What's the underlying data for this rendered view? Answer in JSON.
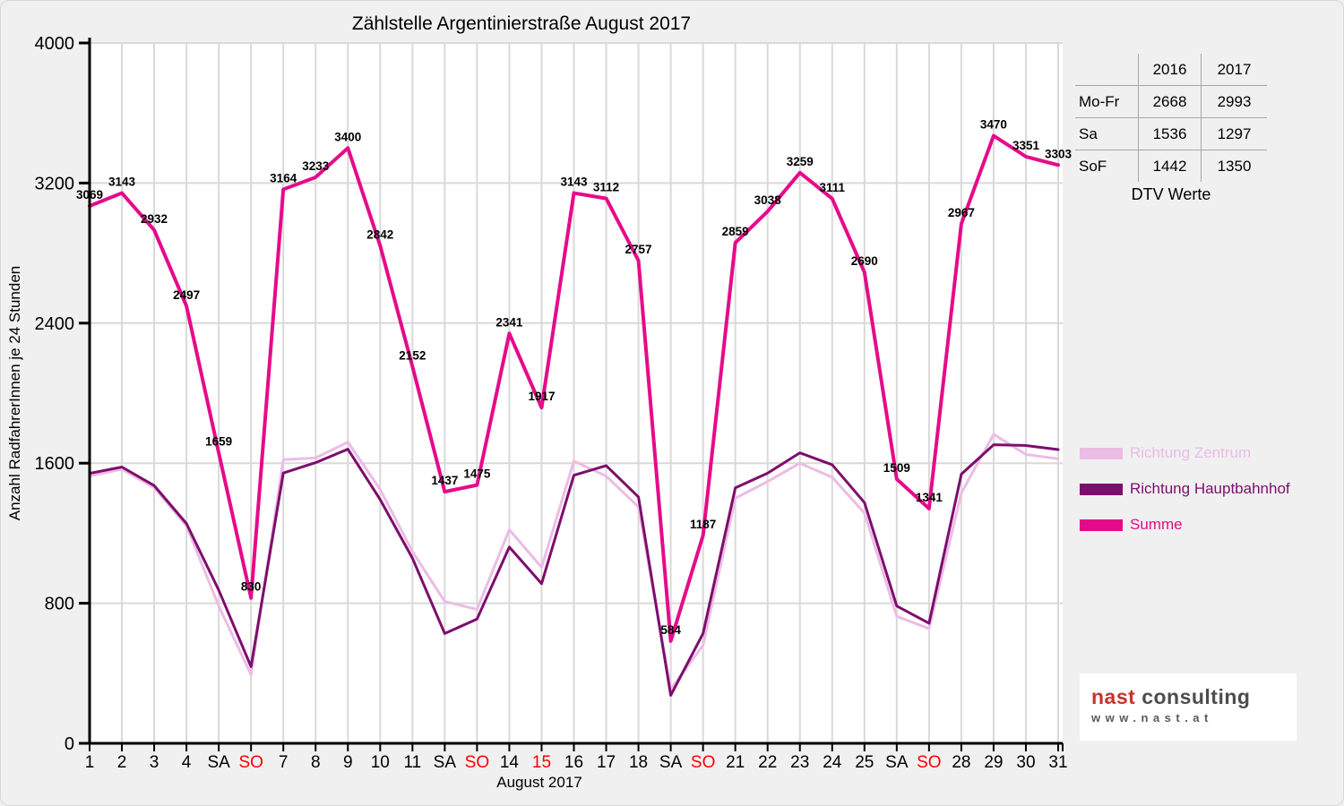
{
  "chart_data": {
    "type": "line",
    "title": "Zählstelle Argentinierstraße August 2017",
    "xlabel": "August 2017",
    "ylabel": "Anzahl RadfahrerInnen je 24 Stunden",
    "ylim": [
      0,
      4000
    ],
    "yticks": [
      0,
      800,
      1600,
      2400,
      3200,
      4000
    ],
    "grid": true,
    "legend_position": "right",
    "categories": [
      "1",
      "2",
      "3",
      "4",
      "SA",
      "SO",
      "7",
      "8",
      "9",
      "10",
      "11",
      "SA",
      "SO",
      "14",
      "15",
      "16",
      "17",
      "18",
      "SA",
      "SO",
      "21",
      "22",
      "23",
      "24",
      "25",
      "SA",
      "SO",
      "28",
      "29",
      "30",
      "31"
    ],
    "red_label_indexes": [
      5,
      12,
      14,
      19,
      26
    ],
    "weekday_label_color": "#000000",
    "weekend_label_color": "#ff0000",
    "series": [
      {
        "name": "Richtung Zentrum",
        "color": "#ecbce5",
        "width": 3,
        "data_labels": false,
        "values": [
          1527,
          1565,
          1460,
          1242,
          784,
          392,
          1620,
          1630,
          1720,
          1450,
          1095,
          810,
          765,
          1220,
          1005,
          1612,
          1526,
          1350,
          310,
          560,
          1400,
          1495,
          1600,
          1520,
          1315,
          725,
          655,
          1430,
          1765,
          1650,
          1625
        ]
      },
      {
        "name": "Richtung Hauptbahnhof",
        "color": "#7d0d6d",
        "width": 3,
        "data_labels": false,
        "values": [
          1542,
          1578,
          1472,
          1255,
          875,
          438,
          1544,
          1603,
          1680,
          1392,
          1057,
          627,
          710,
          1121,
          912,
          1531,
          1586,
          1407,
          274,
          627,
          1459,
          1543,
          1659,
          1591,
          1375,
          784,
          686,
          1537,
          1705,
          1701,
          1678
        ]
      },
      {
        "name": "Summe",
        "color": "#e60a8a",
        "width": 4,
        "data_labels": true,
        "values": [
          3069,
          3143,
          2932,
          2497,
          1659,
          830,
          3164,
          3233,
          3400,
          2842,
          2152,
          1437,
          1475,
          2341,
          1917,
          3143,
          3112,
          2757,
          584,
          1187,
          2859,
          3038,
          3259,
          3111,
          2690,
          1509,
          1341,
          2967,
          3470,
          3351,
          3303
        ]
      }
    ]
  },
  "summary_table": {
    "col_headers": [
      "2016",
      "2017"
    ],
    "rows": [
      {
        "label": "Mo-Fr",
        "y2016": "2668",
        "y2017": "2993"
      },
      {
        "label": "Sa",
        "y2016": "1536",
        "y2017": "1297"
      },
      {
        "label": "SoF",
        "y2016": "1442",
        "y2017": "1350"
      }
    ],
    "caption": "DTV Werte"
  },
  "legend": {
    "items": [
      {
        "label": "Richtung Zentrum",
        "color": "#ecbce5"
      },
      {
        "label": "Richtung Hauptbahnhof",
        "color": "#7d0d6d"
      },
      {
        "label": "Summe",
        "color": "#e60a8a"
      }
    ]
  },
  "logo": {
    "brand_primary": "nast",
    "brand_secondary": "consulting",
    "website": "www.nast.at"
  }
}
